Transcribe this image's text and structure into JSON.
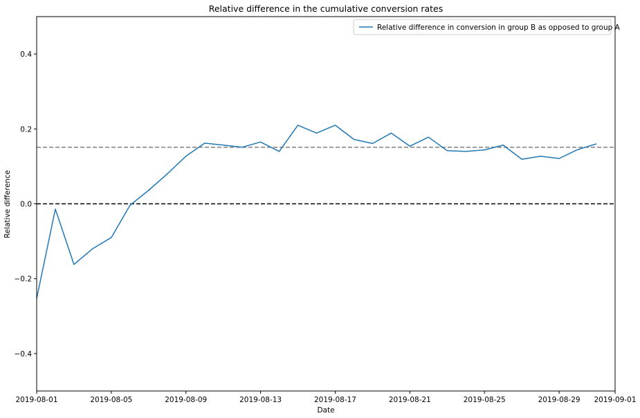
{
  "chart_data": {
    "type": "line",
    "title": "Relative difference in the cumulative conversion rates",
    "xlabel": "Date",
    "ylabel": "Relative difference",
    "xlim": [
      "2019-08-01",
      "2019-09-01"
    ],
    "ylim": [
      -0.5,
      0.5
    ],
    "x_ticks": [
      "2019-08-01",
      "2019-08-05",
      "2019-08-09",
      "2019-08-13",
      "2019-08-17",
      "2019-08-21",
      "2019-08-25",
      "2019-08-29",
      "2019-09-01"
    ],
    "y_ticks": [
      -0.4,
      -0.2,
      0.0,
      0.2,
      0.4
    ],
    "y_tick_labels": [
      "−0.4",
      "−0.2",
      "0.0",
      "0.2",
      "0.4"
    ],
    "grid": false,
    "legend": {
      "placement": "top-right"
    },
    "series": [
      {
        "name": "Relative difference in conversion in group B as opposed to group A",
        "color": "#1f77b4",
        "x": [
          "2019-08-01",
          "2019-08-02",
          "2019-08-03",
          "2019-08-04",
          "2019-08-05",
          "2019-08-06",
          "2019-08-07",
          "2019-08-08",
          "2019-08-09",
          "2019-08-10",
          "2019-08-11",
          "2019-08-12",
          "2019-08-13",
          "2019-08-14",
          "2019-08-15",
          "2019-08-16",
          "2019-08-17",
          "2019-08-18",
          "2019-08-19",
          "2019-08-20",
          "2019-08-21",
          "2019-08-22",
          "2019-08-23",
          "2019-08-24",
          "2019-08-25",
          "2019-08-26",
          "2019-08-27",
          "2019-08-28",
          "2019-08-29",
          "2019-08-30",
          "2019-08-31"
        ],
        "values": [
          -0.253,
          -0.014,
          -0.162,
          -0.12,
          -0.09,
          -0.004,
          0.036,
          0.08,
          0.127,
          0.162,
          0.157,
          0.151,
          0.165,
          0.14,
          0.21,
          0.189,
          0.21,
          0.172,
          0.161,
          0.189,
          0.154,
          0.178,
          0.142,
          0.14,
          0.144,
          0.157,
          0.119,
          0.127,
          0.121,
          0.145,
          0.16
        ]
      }
    ],
    "reference_lines": [
      {
        "y": 0.0,
        "style": "dashed",
        "color": "#000000"
      },
      {
        "y": 0.151,
        "style": "dashed",
        "color": "#808080"
      }
    ]
  }
}
